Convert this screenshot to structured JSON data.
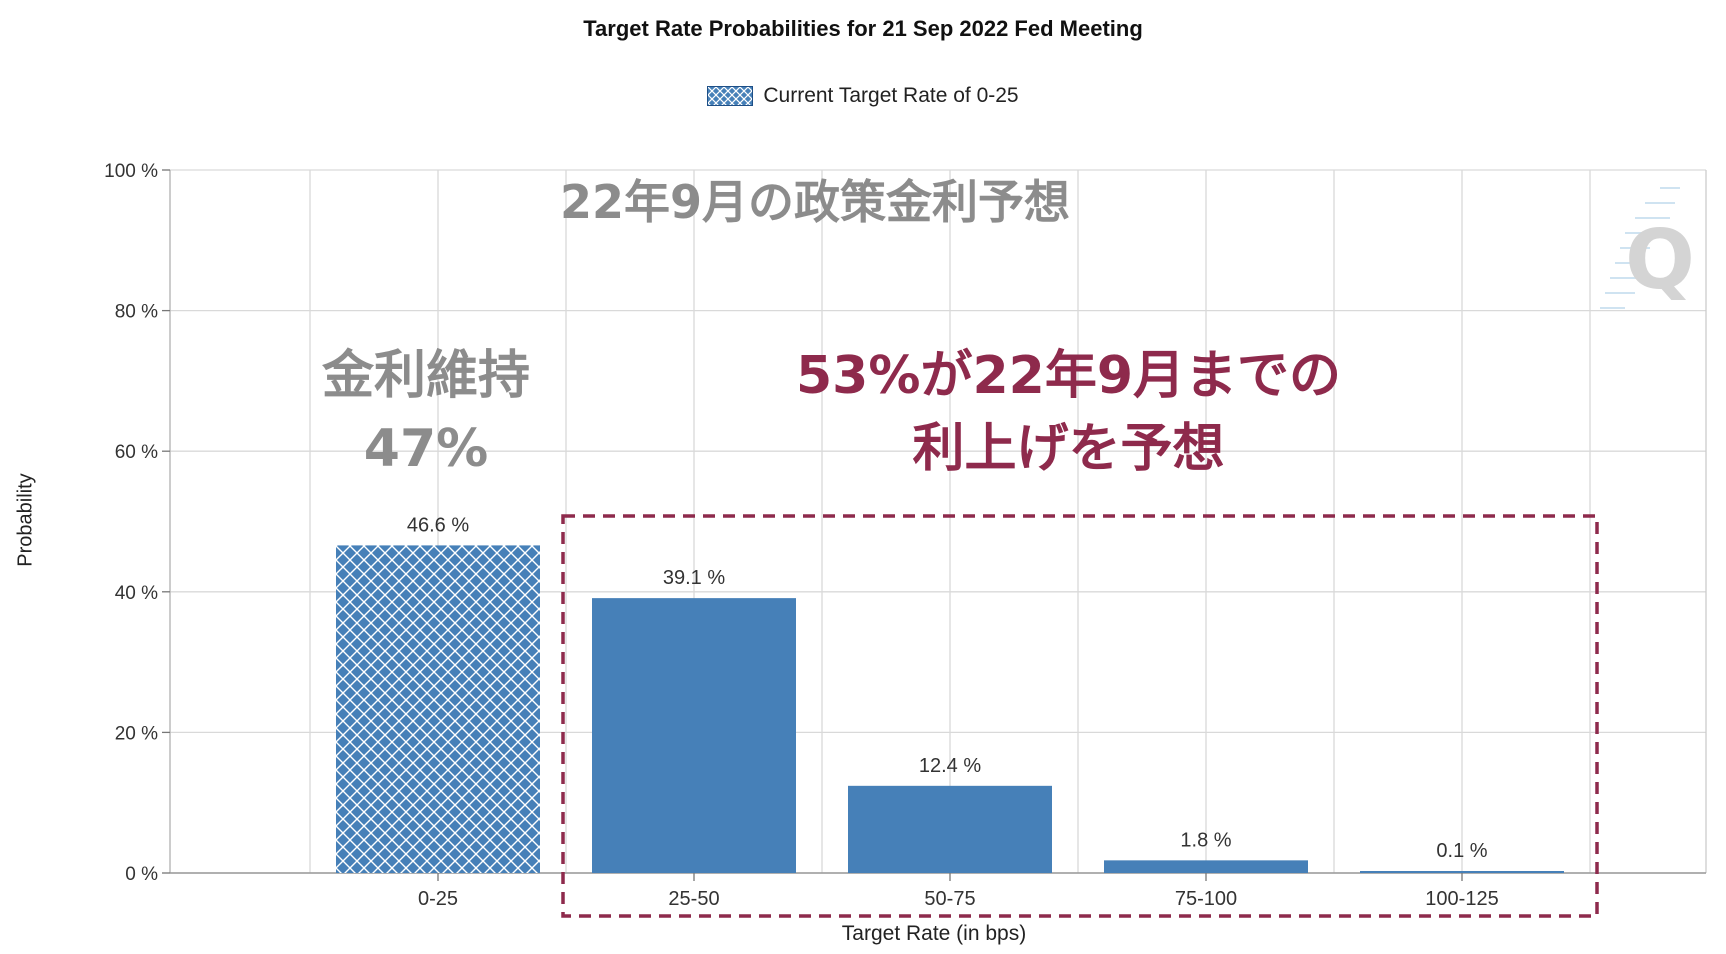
{
  "title": "Target Rate Probabilities for 21 Sep 2022 Fed Meeting",
  "legend": {
    "label": "Current Target Rate of 0-25"
  },
  "colors": {
    "bar": "#4680b8",
    "hatch_line": "#ffffff",
    "grid": "#d9d9d9",
    "annotation_gray": "#8c8c8c",
    "annotation_red": "#8e2a4c",
    "box": "#8e2a4c"
  },
  "annotations": {
    "title_jp": "22年9月の政策金利予想",
    "left_line1": "金利維持",
    "left_line2": "47%",
    "right_line1": "53%が22年9月までの",
    "right_line2": "利上げを予想"
  },
  "watermark_icon": "quikstrike-q-logo-icon",
  "chart_data": {
    "type": "bar",
    "title": "Target Rate Probabilities for 21 Sep 2022 Fed Meeting",
    "xlabel": "Target Rate (in bps)",
    "ylabel": "Probability",
    "categories": [
      "0-25",
      "25-50",
      "50-75",
      "75-100",
      "100-125"
    ],
    "values": [
      46.6,
      39.1,
      12.4,
      1.8,
      0.1
    ],
    "data_labels": [
      "46.6 %",
      "39.1 %",
      "12.4 %",
      "1.8 %",
      "0.1 %"
    ],
    "highlighted_category": "0-25",
    "ylim": [
      0,
      100
    ],
    "yticks": [
      0,
      20,
      40,
      60,
      80,
      100
    ],
    "ytick_labels": [
      "0 %",
      "20 %",
      "40 %",
      "60 %",
      "80 %",
      "100 %"
    ],
    "grid": true,
    "legend_position": "top-center"
  }
}
